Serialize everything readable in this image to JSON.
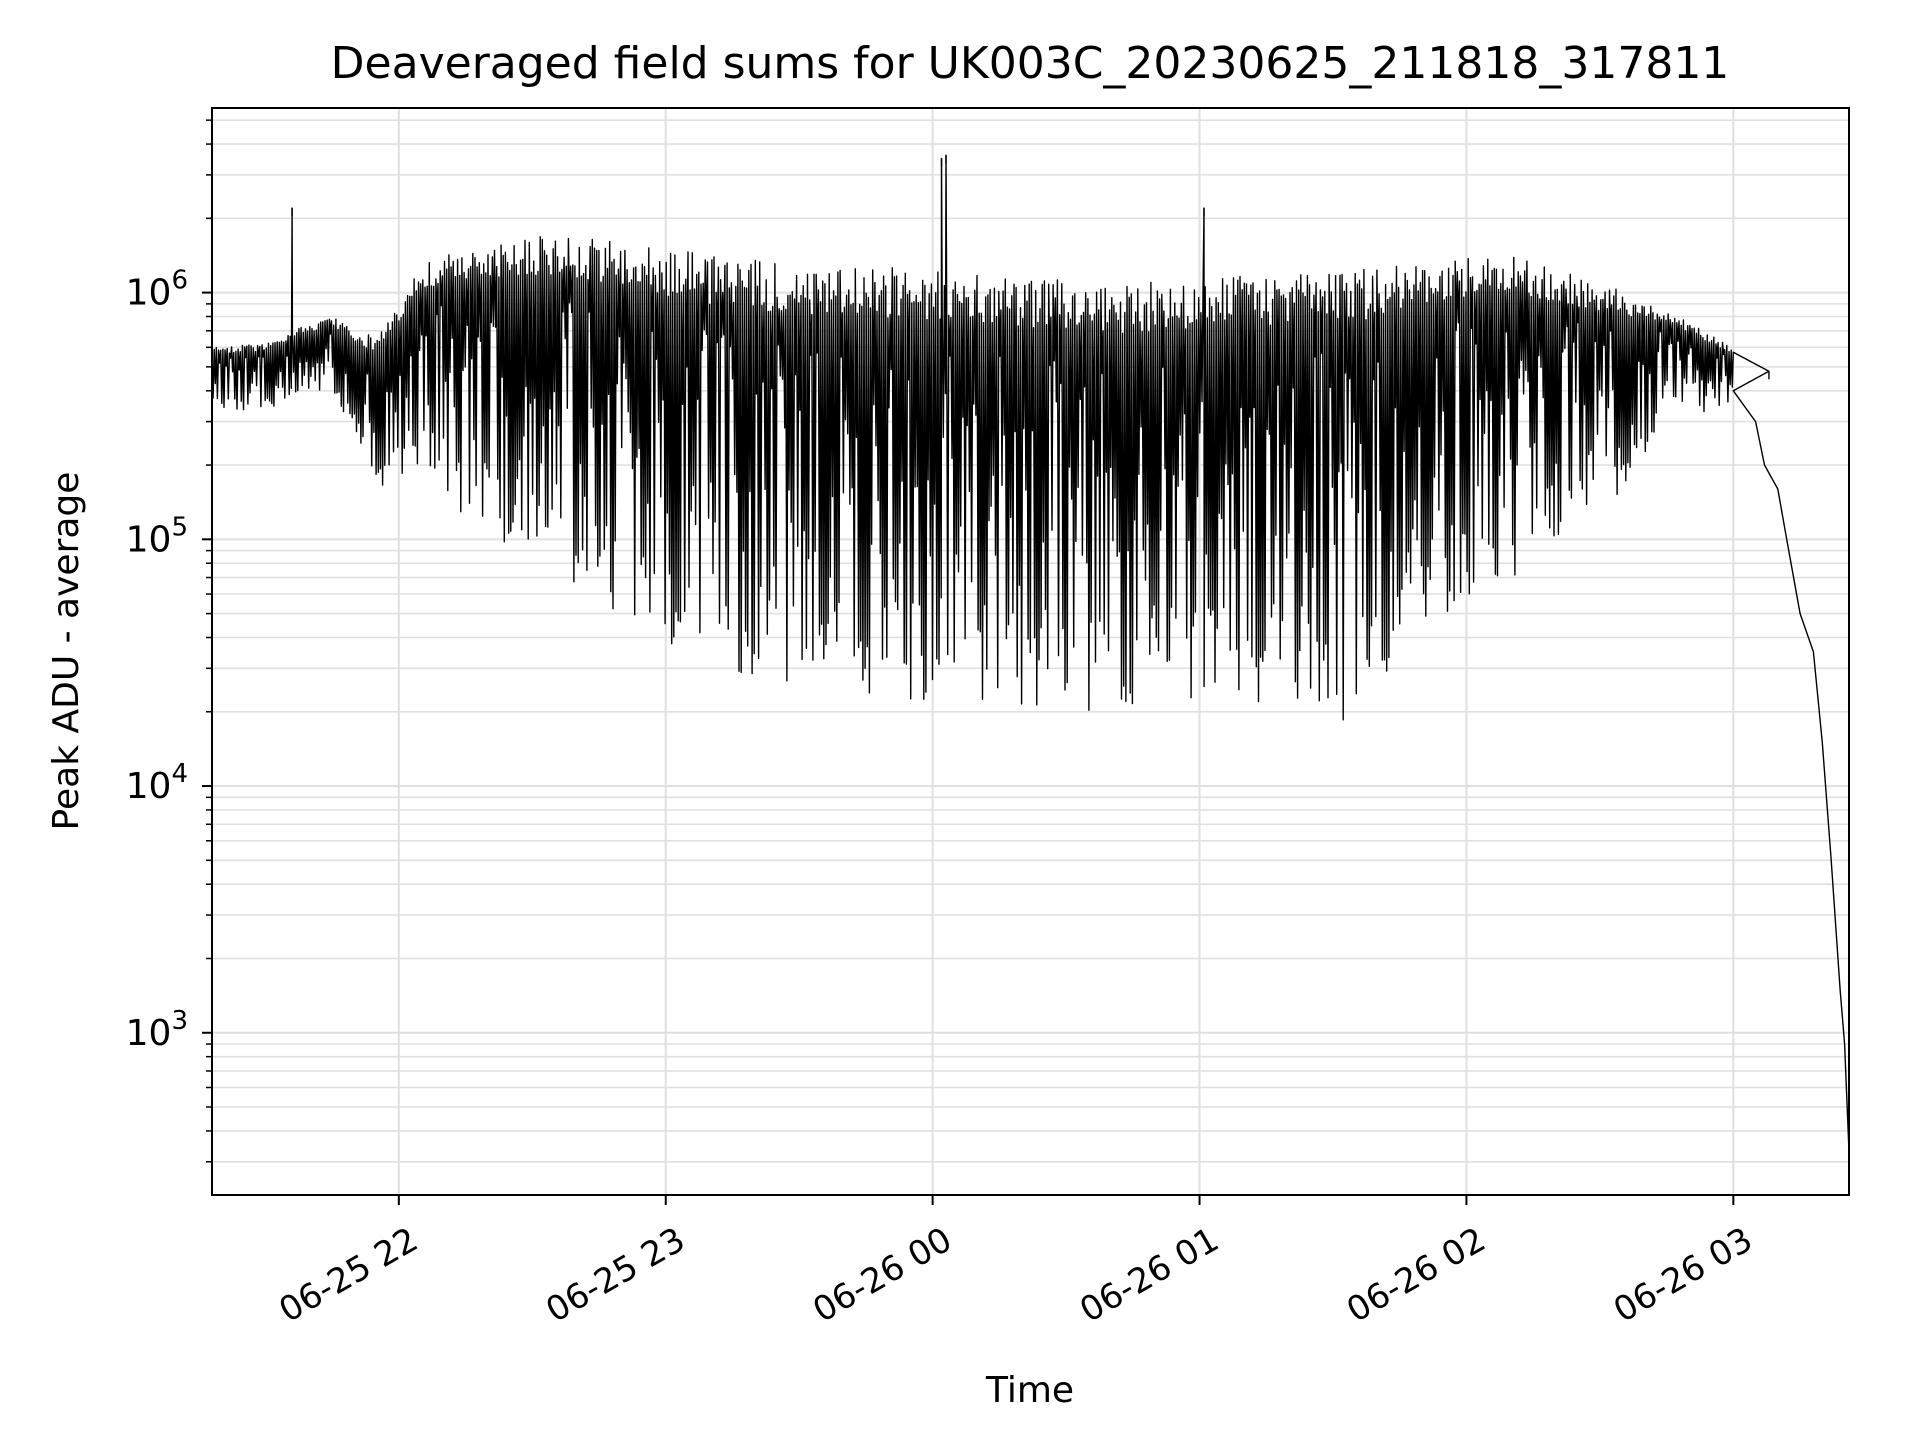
{
  "chart_data": {
    "type": "line",
    "title": "Deaveraged field sums for UK003C_20230625_211818_317811",
    "xlabel": "Time",
    "ylabel": "Peak ADU - average",
    "yscale": "log",
    "grid": true,
    "legend": "none",
    "colors": {
      "line": "#000000",
      "grid": "#e0e0e0",
      "axes": "#000000"
    },
    "xlim": [
      "2023-06-25 21:18",
      "2023-06-26 03:26"
    ],
    "ylim": [
      220,
      5600000
    ],
    "xticks": [
      {
        "time": "2023-06-25 22:00",
        "label": "06-25 22"
      },
      {
        "time": "2023-06-25 23:00",
        "label": "06-25 23"
      },
      {
        "time": "2023-06-26 00:00",
        "label": "06-26 00"
      },
      {
        "time": "2023-06-26 01:00",
        "label": "06-26 01"
      },
      {
        "time": "2023-06-26 02:00",
        "label": "06-26 02"
      },
      {
        "time": "2023-06-26 03:00",
        "label": "06-26 03"
      }
    ],
    "yticks": [
      {
        "value": 1000,
        "base": "10",
        "exp": "3"
      },
      {
        "value": 10000,
        "base": "10",
        "exp": "4"
      },
      {
        "value": 100000,
        "base": "10",
        "exp": "5"
      },
      {
        "value": 1000000,
        "base": "10",
        "exp": "6"
      }
    ],
    "series": [
      {
        "color": "#000000",
        "envelope": [
          {
            "time": "2023-06-25 21:18",
            "high": 600000,
            "low": 330000
          },
          {
            "time": "2023-06-25 21:30",
            "high": 620000,
            "low": 330000
          },
          {
            "time": "2023-06-25 21:36",
            "high": 700000,
            "low": 380000
          },
          {
            "time": "2023-06-25 21:45",
            "high": 800000,
            "low": 400000
          },
          {
            "time": "2023-06-25 21:55",
            "high": 650000,
            "low": 160000
          },
          {
            "time": "2023-06-25 22:05",
            "high": 1300000,
            "low": 200000
          },
          {
            "time": "2023-06-25 22:15",
            "high": 1500000,
            "low": 120000
          },
          {
            "time": "2023-06-25 22:30",
            "high": 1700000,
            "low": 80000
          },
          {
            "time": "2023-06-25 22:45",
            "high": 1650000,
            "low": 55000
          },
          {
            "time": "2023-06-25 23:00",
            "high": 1500000,
            "low": 35000
          },
          {
            "time": "2023-06-25 23:20",
            "high": 1350000,
            "low": 24000
          },
          {
            "time": "2023-06-25 23:40",
            "high": 1300000,
            "low": 22000
          },
          {
            "time": "2023-06-26 00:00",
            "high": 1250000,
            "low": 22000
          },
          {
            "time": "2023-06-26 00:20",
            "high": 1150000,
            "low": 21000
          },
          {
            "time": "2023-06-26 00:40",
            "high": 1100000,
            "low": 20000
          },
          {
            "time": "2023-06-26 01:00",
            "high": 1150000,
            "low": 20000
          },
          {
            "time": "2023-06-26 01:20",
            "high": 1200000,
            "low": 20000
          },
          {
            "time": "2023-06-26 01:35",
            "high": 1250000,
            "low": 18000
          },
          {
            "time": "2023-06-26 01:50",
            "high": 1350000,
            "low": 45000
          },
          {
            "time": "2023-06-26 02:10",
            "high": 1400000,
            "low": 70000
          },
          {
            "time": "2023-06-26 02:30",
            "high": 1100000,
            "low": 120000
          },
          {
            "time": "2023-06-26 02:45",
            "high": 850000,
            "low": 300000
          },
          {
            "time": "2023-06-26 03:00",
            "high": 600000,
            "low": 350000
          }
        ],
        "spikes": [
          {
            "time": "2023-06-25 21:36",
            "value": 2200000
          },
          {
            "time": "2023-06-26 00:02",
            "value": 3500000
          },
          {
            "time": "2023-06-26 00:03",
            "value": 3600000
          },
          {
            "time": "2023-06-26 01:01",
            "value": 2200000
          },
          {
            "time": "2023-06-26 03:08",
            "value": 480000
          }
        ],
        "tail": [
          {
            "time": "2023-06-26 03:00",
            "value": 400000
          },
          {
            "time": "2023-06-26 03:05",
            "value": 300000
          },
          {
            "time": "2023-06-26 03:07",
            "value": 200000
          },
          {
            "time": "2023-06-26 03:10",
            "value": 160000
          },
          {
            "time": "2023-06-26 03:12",
            "value": 100000
          },
          {
            "time": "2023-06-26 03:15",
            "value": 50000
          },
          {
            "time": "2023-06-26 03:18",
            "value": 35000
          },
          {
            "time": "2023-06-26 03:20",
            "value": 15000
          },
          {
            "time": "2023-06-26 03:22",
            "value": 5000
          },
          {
            "time": "2023-06-26 03:24",
            "value": 1500
          },
          {
            "time": "2023-06-26 03:25",
            "value": 900
          },
          {
            "time": "2023-06-26 03:26",
            "value": 330
          }
        ]
      }
    ]
  }
}
